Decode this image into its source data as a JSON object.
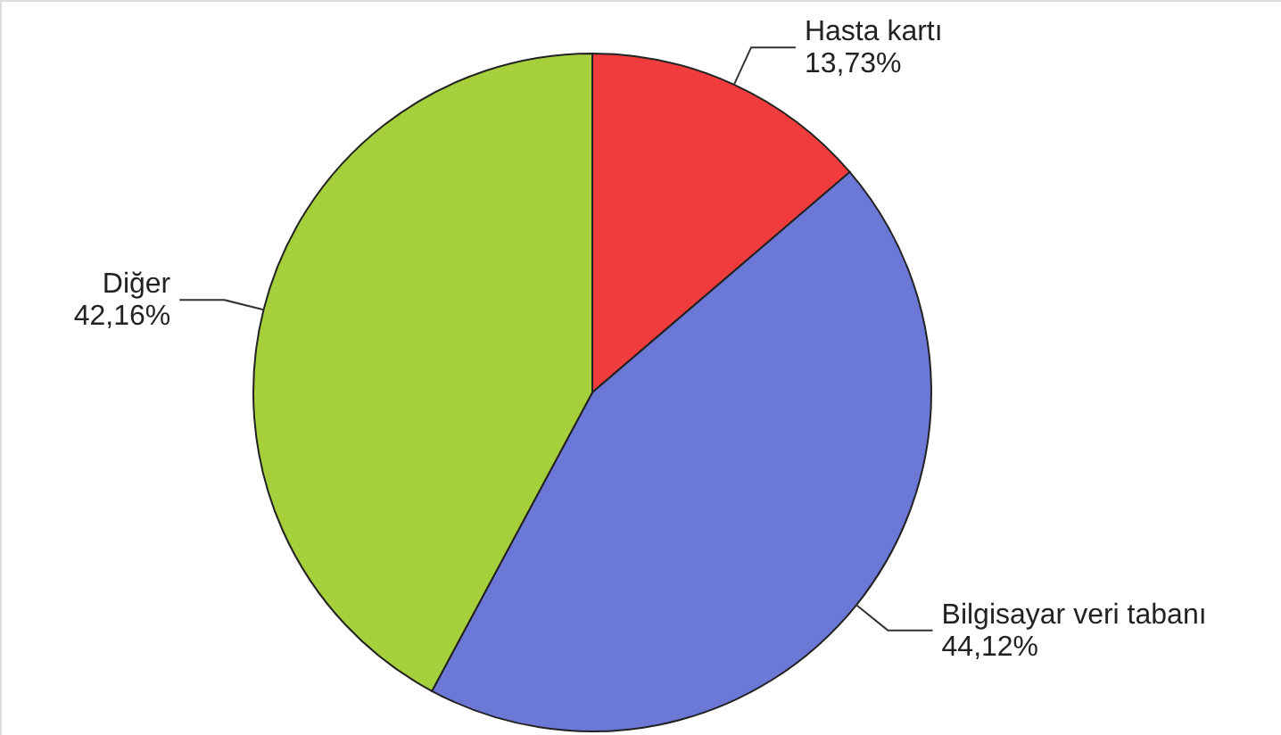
{
  "chart_data": {
    "type": "pie",
    "categories": [
      "Hasta kartı",
      "Bilgisayar veri tabanı",
      "Diğer"
    ],
    "values": [
      13.73,
      44.12,
      42.16
    ],
    "value_labels": [
      "13,73%",
      "44,12%",
      "42,16%"
    ],
    "colors": [
      "#f03c3c",
      "#6b78d6",
      "#a6cf3c"
    ]
  }
}
